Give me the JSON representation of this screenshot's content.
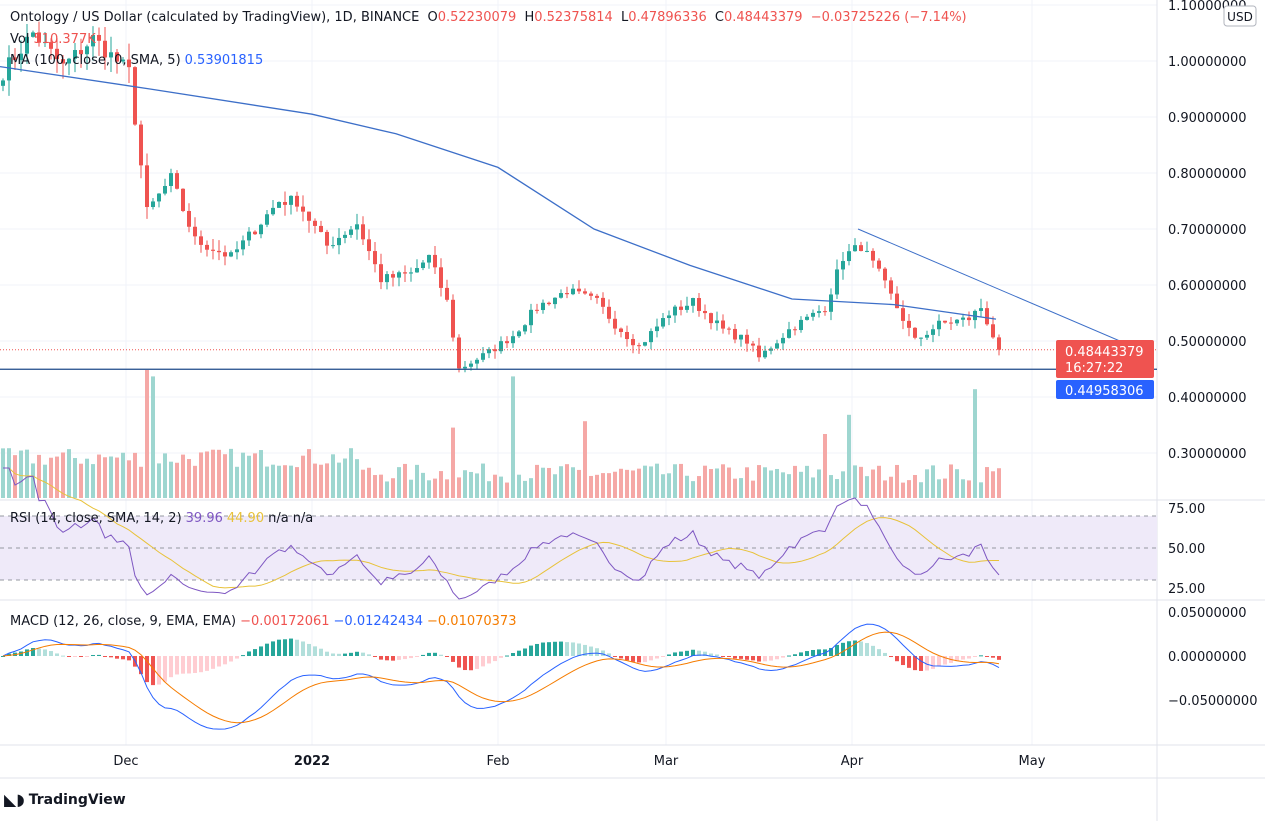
{
  "header": {
    "title": "Ontology / US Dollar (calculated by TradingView), 1D, BINANCE",
    "o_label": "O",
    "o": "0.52230079",
    "h_label": "H",
    "h": "0.52375814",
    "l_label": "L",
    "l": "0.47896336",
    "c_label": "C",
    "c": "0.48443379",
    "change": "−0.03725226 (−7.14%)",
    "vol_label": "Vol",
    "vol": "510.377K",
    "ma_label": "MA (100, close, 0, SMA, 5)",
    "ma": "0.53901815"
  },
  "rsi": {
    "label": "RSI (14, close, SMA, 14, 2)",
    "v1": "39.96",
    "v2": "44.90",
    "v3": "n/a",
    "v4": "n/a",
    "ticks": [
      "75.00",
      "50.00",
      "25.00"
    ]
  },
  "macd": {
    "label": "MACD (12, 26, close, 9, EMA, EMA)",
    "v1": "−0.00172061",
    "v2": "−0.01242434",
    "v3": "−0.01070373",
    "ticks": [
      "0.05000000",
      "0.00000000",
      "−0.05000000"
    ]
  },
  "currency": "USD",
  "price_tag": {
    "price": "0.48443379",
    "countdown": "16:27:22"
  },
  "line_tag": "0.44958306",
  "brand": "TradingView",
  "colors": {
    "up": "#26a69a",
    "down": "#ef5350",
    "ma": "#3d6fc8",
    "macd": "#2962ff",
    "signal": "#f57c00",
    "rsi": "#7e57c2",
    "rsi_ma": "#e8c23a"
  },
  "chart_data": {
    "type": "candlestick",
    "price_ticks": [
      "1.10000000",
      "1.00000000",
      "0.90000000",
      "0.80000000",
      "0.70000000",
      "0.60000000",
      "0.50000000",
      "0.40000000",
      "0.30000000"
    ],
    "x_ticks": [
      "Dec",
      "2022",
      "Feb",
      "Mar",
      "Apr",
      "May"
    ],
    "close_anchors": [
      [
        "2021-11-10",
        0.98
      ],
      [
        "2021-11-15",
        1.05
      ],
      [
        "2021-11-20",
        0.99
      ],
      [
        "2021-11-25",
        1.04
      ],
      [
        "2021-12-01",
        0.98
      ],
      [
        "2021-12-04",
        0.73
      ],
      [
        "2021-12-08",
        0.79
      ],
      [
        "2021-12-12",
        0.68
      ],
      [
        "2021-12-18",
        0.65
      ],
      [
        "2021-12-26",
        0.75
      ],
      [
        "2021-12-29",
        0.75
      ],
      [
        "2022-01-03",
        0.67
      ],
      [
        "2022-01-08",
        0.71
      ],
      [
        "2022-01-12",
        0.61
      ],
      [
        "2022-01-17",
        0.62
      ],
      [
        "2022-01-20",
        0.65
      ],
      [
        "2022-01-23",
        0.57
      ],
      [
        "2022-01-25",
        0.45
      ],
      [
        "2022-01-30",
        0.48
      ],
      [
        "2022-02-03",
        0.51
      ],
      [
        "2022-02-07",
        0.56
      ],
      [
        "2022-02-12",
        0.59
      ],
      [
        "2022-02-17",
        0.57
      ],
      [
        "2022-02-20",
        0.53
      ],
      [
        "2022-02-24",
        0.49
      ],
      [
        "2022-03-01",
        0.55
      ],
      [
        "2022-03-05",
        0.57
      ],
      [
        "2022-03-10",
        0.52
      ],
      [
        "2022-03-14",
        0.5
      ],
      [
        "2022-03-16",
        0.47
      ],
      [
        "2022-03-21",
        0.52
      ],
      [
        "2022-03-27",
        0.56
      ],
      [
        "2022-03-30",
        0.65
      ],
      [
        "2022-04-02",
        0.67
      ],
      [
        "2022-04-05",
        0.62
      ],
      [
        "2022-04-08",
        0.56
      ],
      [
        "2022-04-11",
        0.5
      ],
      [
        "2022-04-15",
        0.53
      ],
      [
        "2022-04-20",
        0.54
      ],
      [
        "2022-04-22",
        0.56
      ],
      [
        "2022-04-25",
        0.484
      ]
    ],
    "ma_anchors": [
      [
        "2021-11-10",
        0.99
      ],
      [
        "2021-12-05",
        0.95
      ],
      [
        "2022-01-01",
        0.905
      ],
      [
        "2022-01-15",
        0.87
      ],
      [
        "2022-02-01",
        0.81
      ],
      [
        "2022-02-17",
        0.7
      ],
      [
        "2022-03-05",
        0.635
      ],
      [
        "2022-03-22",
        0.575
      ],
      [
        "2022-04-08",
        0.565
      ],
      [
        "2022-04-25",
        0.539
      ]
    ],
    "trendline": [
      [
        "2022-04-02",
        0.7
      ],
      [
        "2022-05-20",
        0.48
      ]
    ],
    "support_level": 0.44958306,
    "volume_spikes": [
      [
        "2021-12-04",
        1.0
      ],
      [
        "2021-12-05",
        0.95
      ],
      [
        "2022-01-24",
        0.55
      ],
      [
        "2022-02-03",
        0.95
      ],
      [
        "2022-02-15",
        0.6
      ],
      [
        "2022-03-27",
        0.5
      ],
      [
        "2022-03-31",
        0.65
      ],
      [
        "2022-04-21",
        0.85
      ]
    ]
  }
}
